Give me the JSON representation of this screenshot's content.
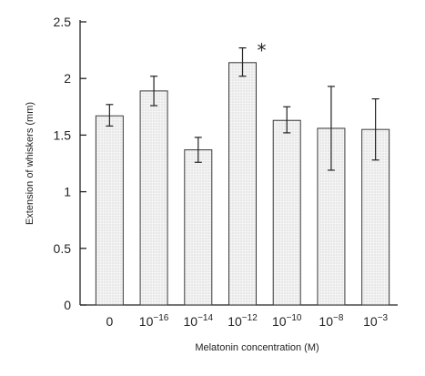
{
  "chart_data": {
    "type": "bar",
    "xlabel": "Melatonin concentration (M)",
    "ylabel": "Extension of whiskers (mm)",
    "ylim": [
      0,
      2.5
    ],
    "y_ticks": [
      "0",
      "0.5",
      "1",
      "1.5",
      "2",
      "2.5"
    ],
    "categories": [
      {
        "base": "0",
        "exp": ""
      },
      {
        "base": "10",
        "exp": "−16"
      },
      {
        "base": "10",
        "exp": "−14"
      },
      {
        "base": "10",
        "exp": "−12"
      },
      {
        "base": "10",
        "exp": "−10"
      },
      {
        "base": "10",
        "exp": "−8"
      },
      {
        "base": "10",
        "exp": "−3"
      }
    ],
    "values": [
      1.67,
      1.89,
      1.37,
      2.14,
      1.63,
      1.56,
      1.55
    ],
    "error_low": [
      1.58,
      1.76,
      1.26,
      2.02,
      1.52,
      1.19,
      1.28
    ],
    "error_high": [
      1.77,
      2.02,
      1.48,
      2.27,
      1.75,
      1.93,
      1.82
    ],
    "annotations": [
      {
        "category_index": 3,
        "text": "*"
      }
    ],
    "grid": false,
    "legend": "none"
  }
}
